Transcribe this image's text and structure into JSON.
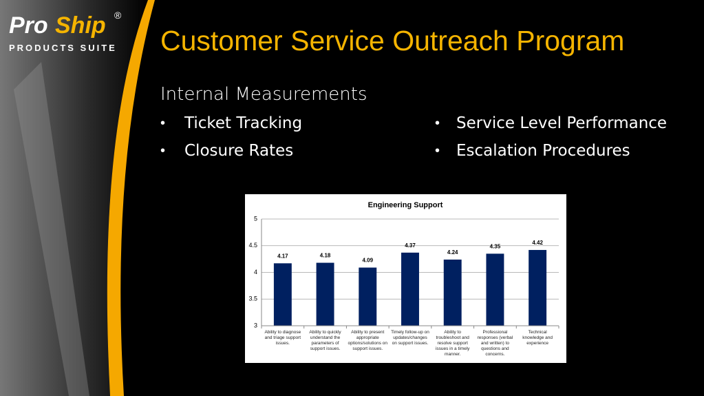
{
  "logo": {
    "brand_a": "Pro",
    "brand_b": "Ship",
    "registered": "®",
    "tagline": "PRODUCTS SUITE"
  },
  "title": "Customer Service Outreach Program",
  "subtitle": "Internal Measurements",
  "bullets_left": [
    "Ticket Tracking",
    "Closure Rates"
  ],
  "bullets_right": [
    "Service Level Performance",
    "Escalation Procedures"
  ],
  "chart_data": {
    "type": "bar",
    "title": "Engineering Support",
    "categories": [
      "Ability to diagnose and triage support issues.",
      "Ability to quickly understand the parameters of support issues.",
      "Ability to present appropriate options/solutions on support issues.",
      "Timely follow-up on updates/changes on support issues.",
      "Ability to troubleshoot and resolve support issues in a timely manner.",
      "Professional responses (verbal and written) to questions and concerns.",
      "Technical knowledge and experience"
    ],
    "values": [
      4.17,
      4.18,
      4.09,
      4.37,
      4.24,
      4.35,
      4.42
    ],
    "color": "#002060",
    "ylim": [
      3,
      5
    ],
    "yticks": [
      3,
      3.5,
      4,
      4.5,
      5
    ],
    "grid": true
  }
}
